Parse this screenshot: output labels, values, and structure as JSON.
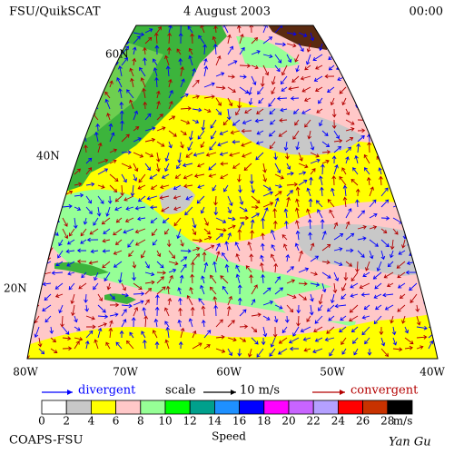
{
  "header": {
    "left": "FSU/QuikSCAT",
    "center": "4 August 2003",
    "right": "00:00"
  },
  "map": {
    "lat_labels": [
      "60N",
      "40N",
      "20N"
    ],
    "lon_labels": [
      "80W",
      "70W",
      "60W",
      "50W",
      "40W"
    ]
  },
  "legend": {
    "divergent": "divergent",
    "scale": "scale",
    "scale_value": "10 m/s",
    "convergent": "convergent",
    "divergent_color": "#0000ff",
    "convergent_color": "#b40000"
  },
  "colorbar": {
    "colors": [
      "#ffffff",
      "#c8c8c8",
      "#ffff00",
      "#ffc8c8",
      "#96ff96",
      "#00ff00",
      "#00a08c",
      "#1e90ff",
      "#0000ff",
      "#ff00ff",
      "#c864ff",
      "#b4a0ff",
      "#ff0000",
      "#c83200",
      "#000000"
    ],
    "ticks": [
      "0",
      "2",
      "4",
      "6",
      "8",
      "10",
      "12",
      "14",
      "16",
      "18",
      "20",
      "22",
      "24",
      "26",
      "28"
    ],
    "unit": "m/s",
    "title": "Speed"
  },
  "footer": {
    "left": "COAPS-FSU",
    "right": "Yan Gu"
  }
}
